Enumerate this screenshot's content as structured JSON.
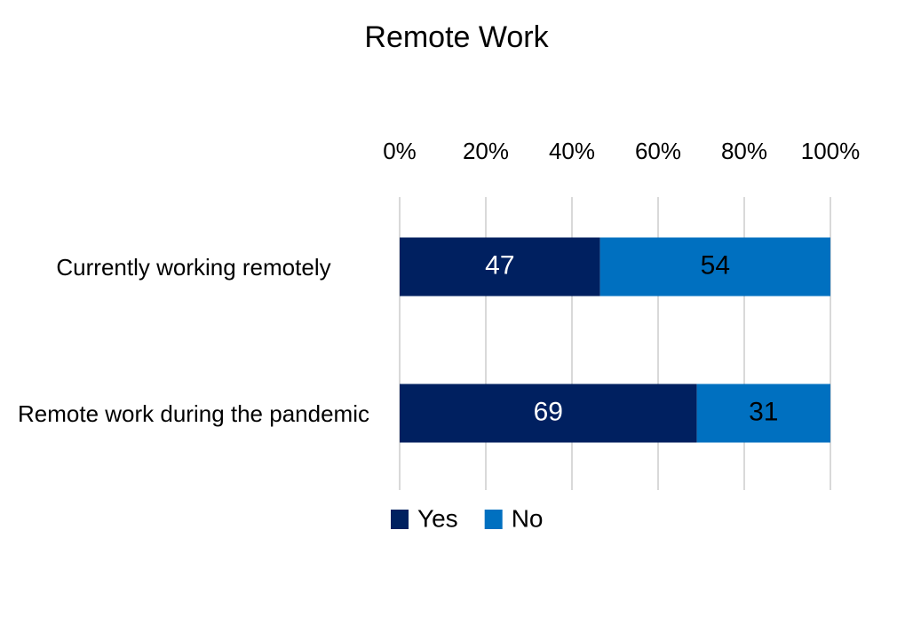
{
  "chart_data": {
    "type": "bar",
    "orientation": "horizontal",
    "stacking": "percent",
    "title": "Remote Work",
    "categories": [
      "Currently working remotely",
      "Remote work during the pandemic"
    ],
    "series": [
      {
        "name": "Yes",
        "color": "#002060",
        "label_color": "#ffffff",
        "values": [
          47,
          69
        ]
      },
      {
        "name": "No",
        "color": "#0070c0",
        "label_color": "#000000",
        "values": [
          54,
          31
        ]
      }
    ],
    "xlim": [
      0,
      100
    ],
    "xticks": [
      {
        "value": 0,
        "label": "0%"
      },
      {
        "value": 20,
        "label": "20%"
      },
      {
        "value": 40,
        "label": "40%"
      },
      {
        "value": 60,
        "label": "60%"
      },
      {
        "value": 80,
        "label": "80%"
      },
      {
        "value": 100,
        "label": "100%"
      }
    ],
    "grid": true,
    "legend": "bottom"
  }
}
